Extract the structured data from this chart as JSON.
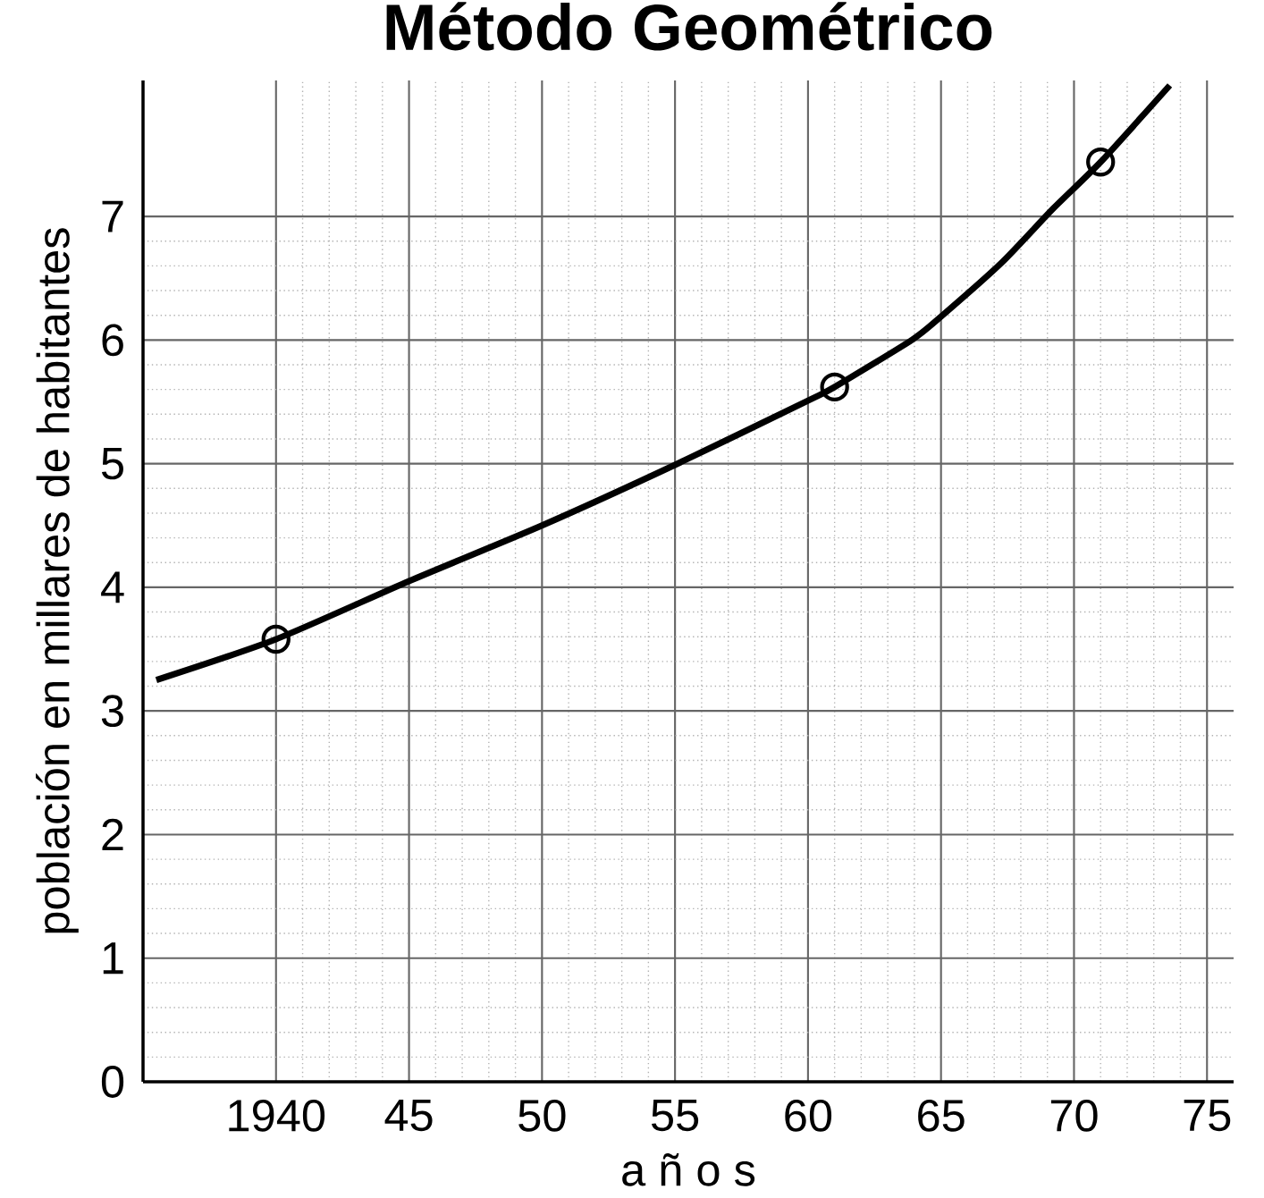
{
  "chart_data": {
    "type": "line",
    "title": "Método Geométrico",
    "xlabel": "a ñ o s",
    "ylabel": "población en millares de habitantes",
    "xlim": [
      1935,
      1976
    ],
    "ylim": [
      0,
      8.1
    ],
    "xticks": [
      1940,
      {
        "value": 1945,
        "label": "45"
      },
      {
        "value": 1950,
        "label": "50"
      },
      {
        "value": 1955,
        "label": "55"
      },
      {
        "value": 1960,
        "label": "60"
      },
      {
        "value": 1965,
        "label": "65"
      },
      {
        "value": 1970,
        "label": "70"
      },
      {
        "value": 1975,
        "label": "75"
      }
    ],
    "yticks": [
      0,
      1,
      2,
      3,
      4,
      5,
      6,
      7
    ],
    "grid": true,
    "series": [
      {
        "color": "#000000",
        "marker": "none",
        "x": [
          1935.5,
          1940,
          1945,
          1950,
          1955,
          1960,
          1961,
          1963.9,
          1965,
          1967.3,
          1969.2,
          1971,
          1973.6
        ],
        "values": [
          3.25,
          3.58,
          4.05,
          4.5,
          4.99,
          5.51,
          5.62,
          6.0,
          6.19,
          6.63,
          7.06,
          7.44,
          8.06
        ]
      },
      {
        "type": "scatter",
        "color": "#000000",
        "marker": "circle",
        "x": [
          1940,
          1961,
          1971
        ],
        "values": [
          3.58,
          5.62,
          7.44
        ]
      }
    ]
  }
}
